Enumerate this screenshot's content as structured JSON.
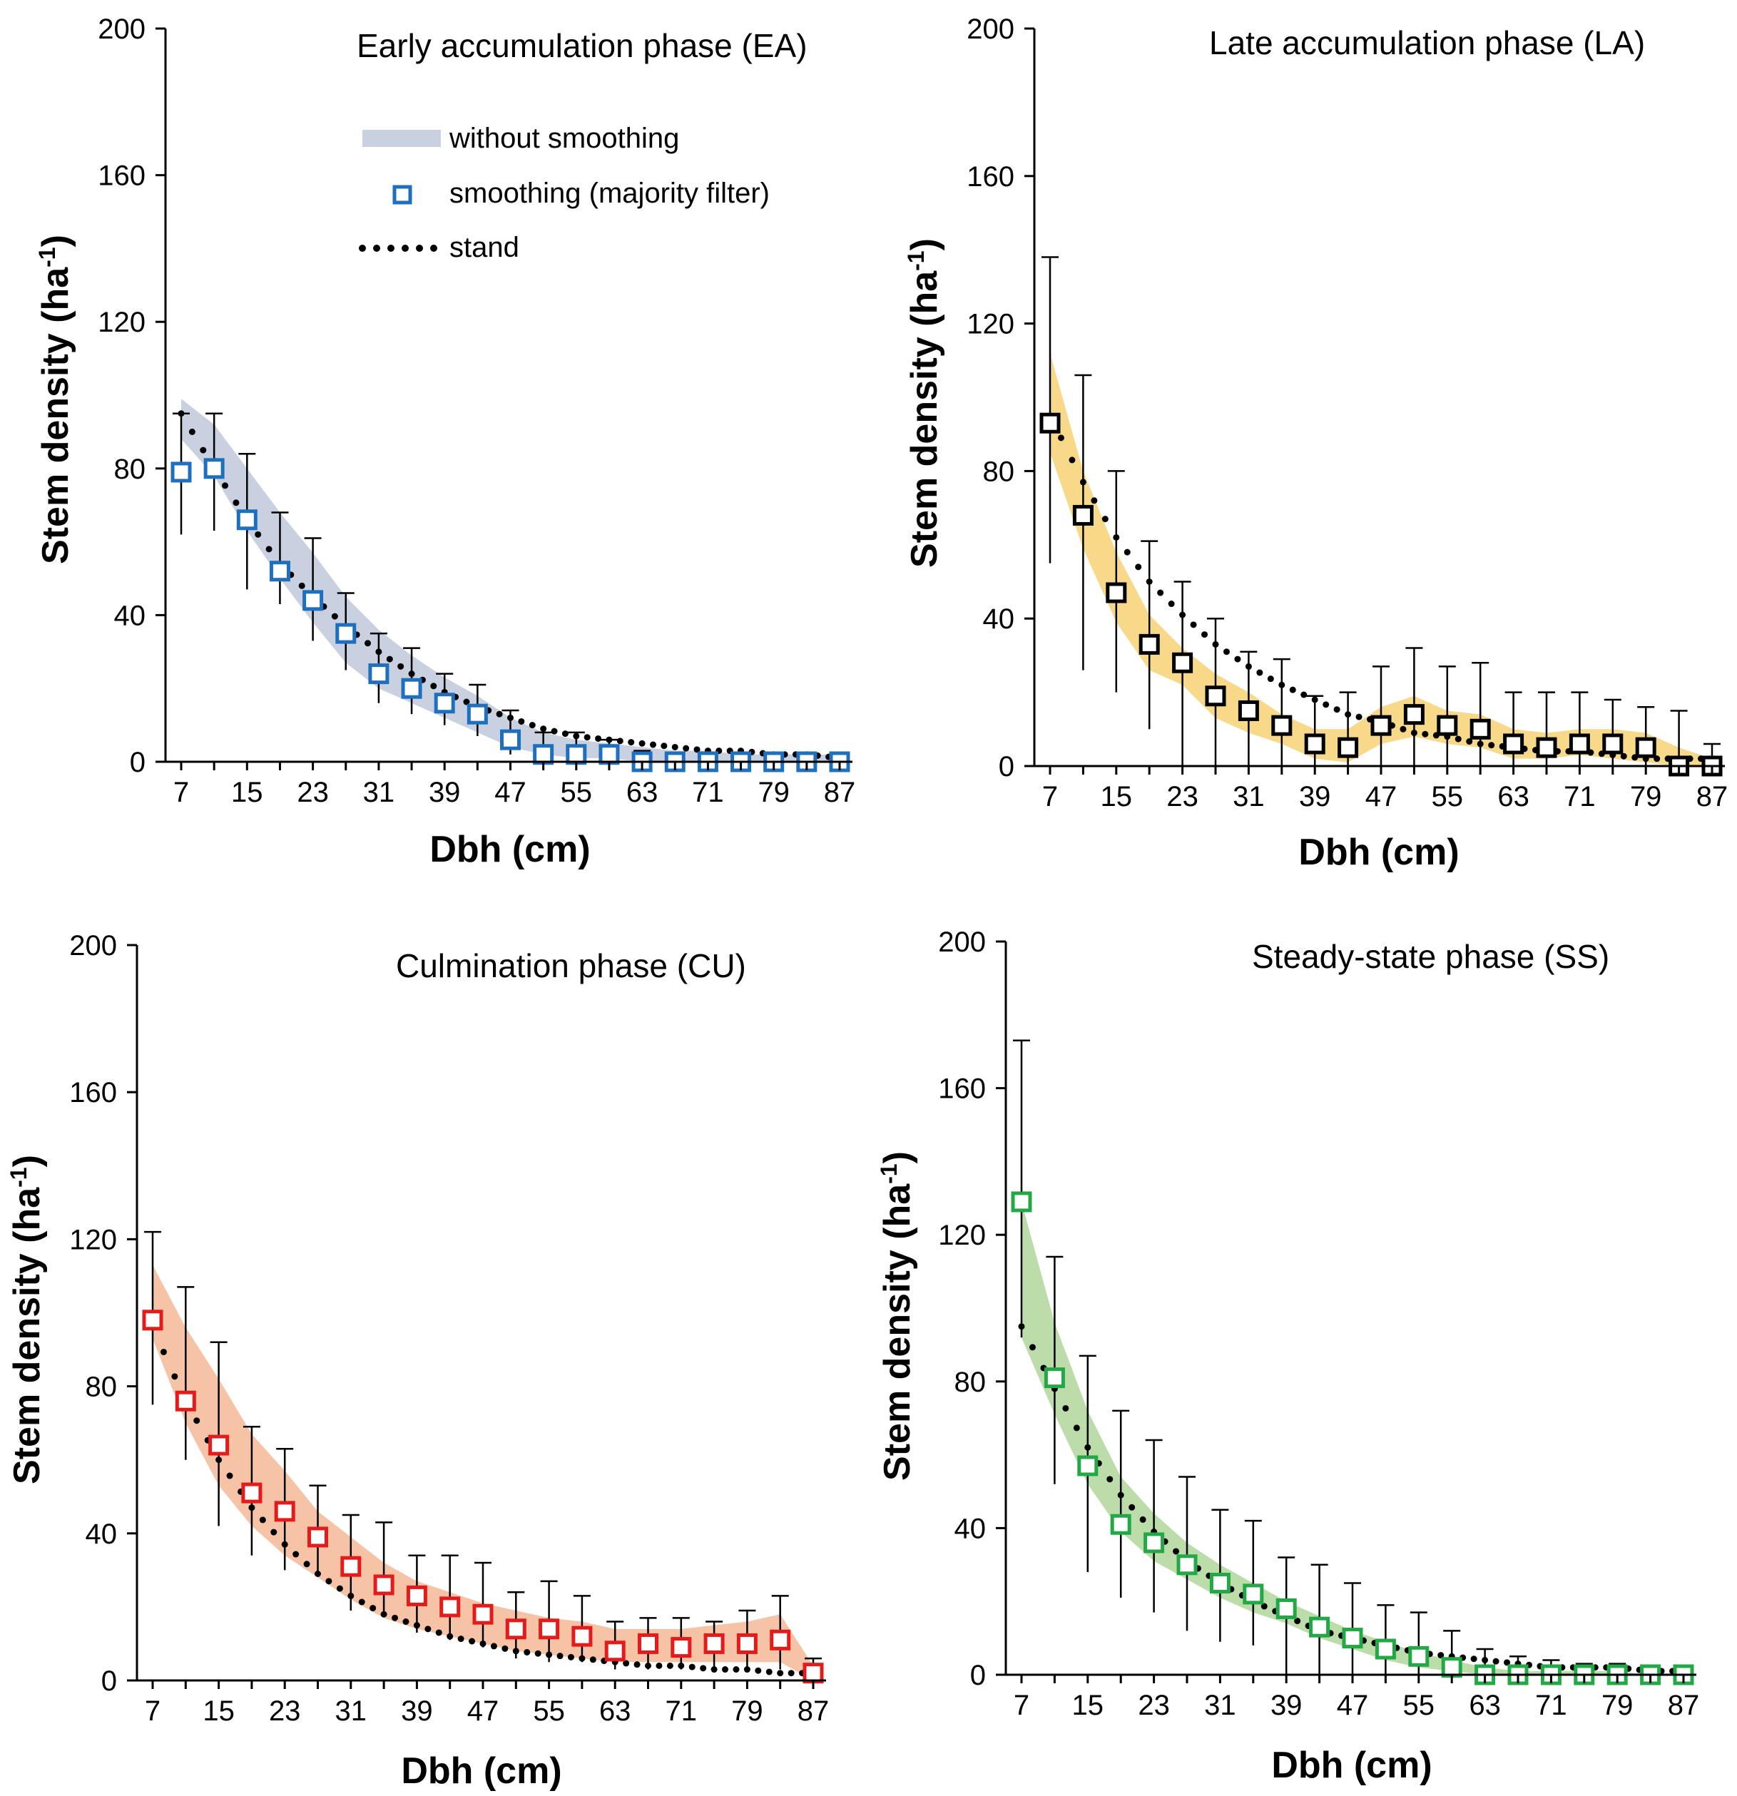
{
  "chart_data": [
    {
      "id": "EA",
      "type": "scatter",
      "title": "Early accumulation phase (EA)",
      "xlabel": "Dbh (cm)",
      "ylabel": "Stem density (ha",
      "ylabel_sup": "-1",
      "ylabel_end": ")",
      "xticks": [
        "7",
        "15",
        "23",
        "31",
        "39",
        "47",
        "55",
        "63",
        "71",
        "79",
        "87"
      ],
      "yticks": [
        "0",
        "40",
        "80",
        "120",
        "160",
        "200"
      ],
      "ylim": [
        0,
        200
      ],
      "xlim": [
        7,
        87
      ],
      "color": "#1f6fbf",
      "band_color": "#c9d1e1",
      "x": [
        7,
        11,
        15,
        19,
        23,
        27,
        31,
        35,
        39,
        43,
        47,
        51,
        55,
        59,
        63,
        67,
        71,
        75,
        79,
        83,
        87
      ],
      "smoothed": [
        79,
        80,
        66,
        52,
        44,
        35,
        24,
        20,
        16,
        13,
        6,
        2,
        2,
        2,
        0,
        0,
        0,
        0,
        0,
        0,
        0
      ],
      "err_upper": [
        95,
        95,
        84,
        68,
        61,
        46,
        35,
        31,
        24,
        21,
        14,
        8,
        8,
        6,
        3,
        2,
        2,
        2,
        1,
        1,
        1
      ],
      "err_lower": [
        62,
        63,
        47,
        43,
        33,
        25,
        16,
        13,
        10,
        7,
        2,
        0,
        0,
        0,
        0,
        0,
        0,
        0,
        0,
        0,
        0
      ],
      "band_upper": [
        99,
        92,
        80,
        68,
        57,
        45,
        36,
        29,
        23,
        18,
        12,
        8,
        6,
        5,
        4,
        3,
        3,
        2,
        2,
        2,
        2
      ],
      "band_lower": [
        88,
        78,
        63,
        50,
        38,
        27,
        20,
        16,
        12,
        8,
        4,
        2,
        1,
        1,
        0,
        0,
        0,
        0,
        0,
        0,
        0
      ],
      "stand": [
        95,
        80,
        66,
        54,
        45,
        37,
        30,
        24,
        19,
        15,
        12,
        9,
        7,
        6,
        5,
        4,
        3,
        3,
        2,
        2,
        1
      ],
      "legend": {
        "band_label": "without smoothing",
        "marker_label": "smoothing (majority filter)",
        "stand_label": "stand"
      }
    },
    {
      "id": "LA",
      "type": "scatter",
      "title": "Late accumulation phase (LA)",
      "xlabel": "Dbh (cm)",
      "ylabel": "Stem density (ha",
      "ylabel_sup": "-1",
      "ylabel_end": ")",
      "xticks": [
        "7",
        "15",
        "23",
        "31",
        "39",
        "47",
        "55",
        "63",
        "71",
        "79",
        "87"
      ],
      "yticks": [
        "0",
        "40",
        "80",
        "120",
        "160",
        "200"
      ],
      "ylim": [
        0,
        200
      ],
      "xlim": [
        7,
        87
      ],
      "color": "#000000",
      "band_color": "#f8d98a",
      "x": [
        7,
        11,
        15,
        19,
        23,
        27,
        31,
        35,
        39,
        43,
        47,
        51,
        55,
        59,
        63,
        67,
        71,
        75,
        79,
        83,
        87
      ],
      "smoothed": [
        93,
        68,
        47,
        33,
        28,
        19,
        15,
        11,
        6,
        5,
        11,
        14,
        11,
        10,
        6,
        5,
        6,
        6,
        5,
        0,
        0
      ],
      "err_upper": [
        138,
        106,
        80,
        61,
        50,
        40,
        31,
        29,
        19,
        20,
        27,
        32,
        27,
        28,
        20,
        20,
        20,
        18,
        16,
        15,
        6
      ],
      "err_lower": [
        55,
        26,
        20,
        10,
        0,
        0,
        0,
        0,
        0,
        0,
        0,
        0,
        0,
        0,
        0,
        0,
        0,
        0,
        0,
        0,
        0
      ],
      "band_upper": [
        112,
        80,
        58,
        41,
        32,
        25,
        20,
        14,
        10,
        10,
        16,
        19,
        15,
        14,
        10,
        9,
        10,
        10,
        9,
        5,
        2
      ],
      "band_lower": [
        85,
        59,
        39,
        26,
        22,
        13,
        9,
        6,
        2,
        1,
        6,
        8,
        6,
        5,
        2,
        2,
        3,
        2,
        1,
        0,
        0
      ],
      "stand": [
        95,
        77,
        62,
        50,
        41,
        33,
        27,
        22,
        18,
        14,
        12,
        9,
        8,
        6,
        5,
        4,
        4,
        3,
        2,
        2,
        2
      ]
    },
    {
      "id": "CU",
      "type": "scatter",
      "title": "Culmination phase (CU)",
      "xlabel": "Dbh (cm)",
      "ylabel": "Stem density (ha",
      "ylabel_sup": "-1",
      "ylabel_end": ")",
      "xticks": [
        "7",
        "15",
        "23",
        "31",
        "39",
        "47",
        "55",
        "63",
        "71",
        "79",
        "87"
      ],
      "yticks": [
        "0",
        "40",
        "80",
        "120",
        "160",
        "200"
      ],
      "ylim": [
        0,
        200
      ],
      "xlim": [
        7,
        87
      ],
      "color": "#e51b1b",
      "band_color": "#f6c3a6",
      "x": [
        7,
        11,
        15,
        19,
        23,
        27,
        31,
        35,
        39,
        43,
        47,
        51,
        55,
        59,
        63,
        67,
        71,
        75,
        79,
        83,
        87
      ],
      "smoothed": [
        98,
        76,
        64,
        51,
        46,
        39,
        31,
        26,
        23,
        20,
        18,
        14,
        14,
        12,
        8,
        10,
        9,
        10,
        10,
        11,
        2
      ],
      "err_upper": [
        122,
        107,
        92,
        69,
        63,
        53,
        45,
        43,
        34,
        34,
        32,
        24,
        27,
        23,
        16,
        17,
        17,
        16,
        19,
        23,
        6
      ],
      "err_lower": [
        75,
        60,
        42,
        34,
        30,
        29,
        19,
        18,
        13,
        11,
        9,
        6,
        5,
        5,
        3,
        3,
        3,
        3,
        3,
        3,
        0
      ],
      "band_upper": [
        113,
        96,
        82,
        67,
        57,
        46,
        39,
        32,
        27,
        24,
        21,
        19,
        17,
        16,
        14,
        14,
        14,
        15,
        16,
        18,
        4
      ],
      "band_lower": [
        93,
        70,
        53,
        42,
        34,
        28,
        22,
        17,
        14,
        12,
        10,
        8,
        7,
        6,
        5,
        5,
        5,
        5,
        5,
        5,
        0
      ],
      "stand": [
        96,
        76,
        60,
        47,
        37,
        29,
        23,
        18,
        15,
        12,
        10,
        8,
        7,
        6,
        5,
        4,
        4,
        3,
        3,
        2,
        2
      ]
    },
    {
      "id": "SS",
      "type": "scatter",
      "title": "Steady-state phase (SS)",
      "xlabel": "Dbh (cm)",
      "ylabel": "Stem density (ha",
      "ylabel_sup": "-1",
      "ylabel_end": ")",
      "xticks": [
        "7",
        "15",
        "23",
        "31",
        "39",
        "47",
        "55",
        "63",
        "71",
        "79",
        "87"
      ],
      "yticks": [
        "0",
        "40",
        "80",
        "120",
        "160",
        "200"
      ],
      "ylim": [
        0,
        200
      ],
      "xlim": [
        7,
        87
      ],
      "color": "#22a844",
      "band_color": "#bcdcaa",
      "x": [
        7,
        11,
        15,
        19,
        23,
        27,
        31,
        35,
        39,
        43,
        47,
        51,
        55,
        59,
        63,
        67,
        71,
        75,
        79,
        83,
        87
      ],
      "smoothed": [
        129,
        81,
        57,
        41,
        36,
        30,
        25,
        22,
        18,
        13,
        10,
        7,
        5,
        2,
        0,
        0,
        0,
        0,
        0,
        0,
        0
      ],
      "err_upper": [
        173,
        114,
        87,
        72,
        64,
        54,
        45,
        42,
        32,
        30,
        25,
        19,
        17,
        12,
        7,
        5,
        4,
        3,
        3,
        2,
        2
      ],
      "err_lower": [
        92,
        52,
        28,
        21,
        17,
        12,
        9,
        8,
        0,
        0,
        0,
        0,
        0,
        0,
        0,
        0,
        0,
        0,
        0,
        0,
        0
      ],
      "band_upper": [
        129,
        96,
        72,
        54,
        44,
        36,
        30,
        25,
        20,
        16,
        12,
        9,
        6,
        4,
        2,
        1,
        1,
        1,
        1,
        0,
        0
      ],
      "band_lower": [
        92,
        71,
        52,
        39,
        31,
        26,
        21,
        17,
        14,
        10,
        7,
        4,
        2,
        1,
        0,
        0,
        0,
        0,
        0,
        0,
        0
      ],
      "stand": [
        95,
        78,
        62,
        49,
        39,
        31,
        25,
        20,
        16,
        12,
        10,
        8,
        6,
        5,
        4,
        3,
        2,
        2,
        2,
        1,
        1
      ]
    }
  ]
}
